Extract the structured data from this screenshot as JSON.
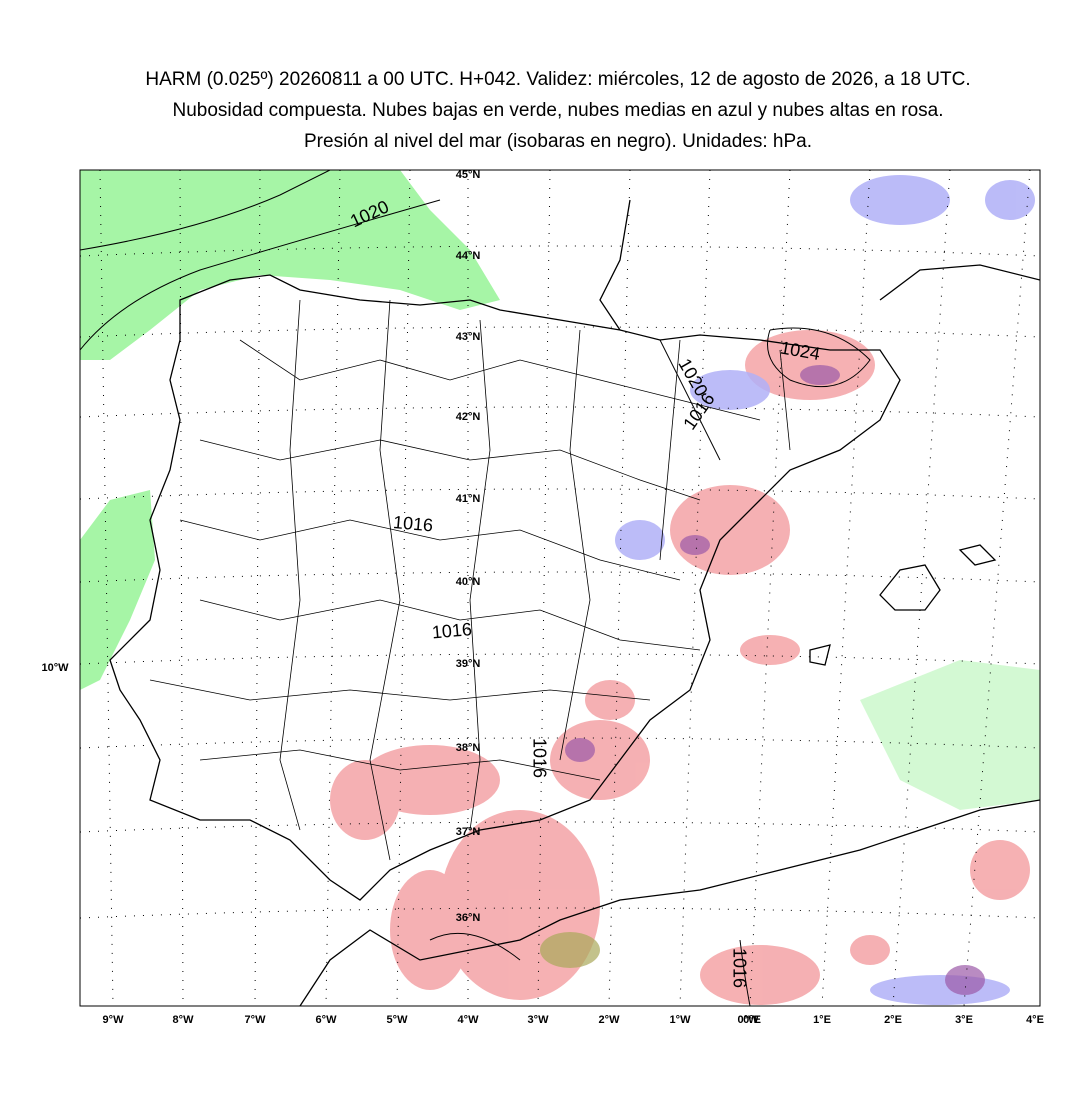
{
  "title": [
    "HARM (0.025º) 20260811 a 00 UTC. H+042. Validez: miércoles, 12 de agosto de 2026, a 18 UTC.",
    "Nubosidad compuesta. Nubes bajas en verde, nubes medias en azul y nubes altas en rosa.",
    "Presión al nivel del mar (isobaras en negro). Unidades: hPa."
  ],
  "latitude_labels": [
    "45°N",
    "44°N",
    "43°N",
    "42°N",
    "41°N",
    "40°N",
    "39°N",
    "38°N",
    "37°N",
    "36°N",
    "10°W"
  ],
  "longitude_labels": [
    "9°W",
    "8°W",
    "7°W",
    "6°W",
    "5°W",
    "4°W",
    "3°W",
    "2°W",
    "1°W",
    "0°W",
    "0°E",
    "1°E",
    "2°E",
    "3°E",
    "4°E"
  ],
  "isobar_labels": [
    "1020",
    "1024",
    "1020",
    "1016",
    "1016",
    "1016",
    "1016",
    "1016"
  ]
}
